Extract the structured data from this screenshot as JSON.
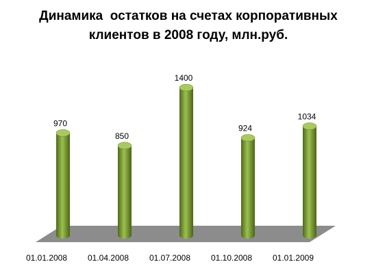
{
  "chart_data": {
    "type": "bar",
    "title": "Динамика  остатков на счетах корпоративных клиентов в 2008 году, млн.руб.",
    "categories": [
      "01.01.2008",
      "01.04.2008",
      "01.07.2008",
      "01.10.2008",
      "01.01.2009"
    ],
    "values": [
      970,
      850,
      1400,
      924,
      1034
    ],
    "color": "#7a9a3a"
  }
}
